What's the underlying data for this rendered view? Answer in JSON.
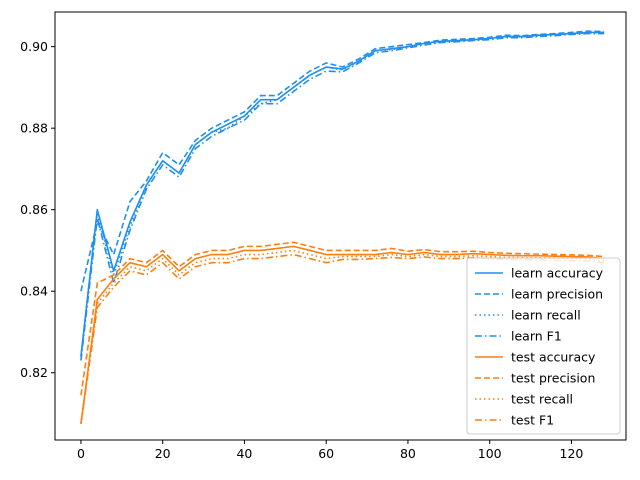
{
  "chart_data": {
    "type": "line",
    "title": "",
    "xlabel": "",
    "ylabel": "",
    "xlim": [
      -6.35,
      133.35
    ],
    "ylim": [
      0.8035,
      0.9085
    ],
    "xticks": [
      0,
      20,
      40,
      60,
      80,
      100,
      120
    ],
    "xtick_labels": [
      "0",
      "20",
      "40",
      "60",
      "80",
      "100",
      "120"
    ],
    "yticks": [
      0.82,
      0.84,
      0.86,
      0.88,
      0.9
    ],
    "ytick_labels": [
      "0.82",
      "0.84",
      "0.86",
      "0.88",
      "0.90"
    ],
    "grid": false,
    "legend_position": "lower-right",
    "colors": {
      "learn": "#1f8ff0",
      "test": "#ff7f0e"
    },
    "x_start": 0,
    "x_step": 4,
    "series": [
      {
        "name": "learn accuracy",
        "group": "learn",
        "style": "solid",
        "values": [
          0.824,
          0.86,
          0.845,
          0.857,
          0.866,
          0.872,
          0.869,
          0.876,
          0.879,
          0.881,
          0.883,
          0.887,
          0.887,
          0.89,
          0.893,
          0.895,
          0.8945,
          0.8965,
          0.899,
          0.8995,
          0.9,
          0.9008,
          0.9013,
          0.9015,
          0.9017,
          0.902,
          0.9025,
          0.9025,
          0.9028,
          0.903,
          0.9032,
          0.9035,
          0.9035
        ]
      },
      {
        "name": "learn precision",
        "group": "learn",
        "style": "dashed",
        "values": [
          0.84,
          0.857,
          0.849,
          0.862,
          0.867,
          0.874,
          0.871,
          0.877,
          0.88,
          0.882,
          0.884,
          0.888,
          0.888,
          0.891,
          0.894,
          0.896,
          0.895,
          0.897,
          0.8995,
          0.9,
          0.9005,
          0.901,
          0.9016,
          0.9018,
          0.902,
          0.9023,
          0.9028,
          0.9027,
          0.903,
          0.9032,
          0.9035,
          0.9038,
          0.9037
        ]
      },
      {
        "name": "learn recall",
        "group": "learn",
        "style": "dotted",
        "values": [
          0.824,
          0.859,
          0.844,
          0.856,
          0.866,
          0.872,
          0.869,
          0.876,
          0.879,
          0.88,
          0.883,
          0.886,
          0.887,
          0.89,
          0.893,
          0.895,
          0.8943,
          0.8963,
          0.899,
          0.8993,
          0.9,
          0.9006,
          0.9012,
          0.9014,
          0.9016,
          0.9019,
          0.9024,
          0.9024,
          0.9027,
          0.9029,
          0.9031,
          0.9034,
          0.9034
        ]
      },
      {
        "name": "learn F1",
        "group": "learn",
        "style": "dashdot",
        "values": [
          0.823,
          0.858,
          0.842,
          0.855,
          0.865,
          0.871,
          0.868,
          0.875,
          0.878,
          0.88,
          0.882,
          0.886,
          0.886,
          0.889,
          0.892,
          0.894,
          0.8938,
          0.896,
          0.8985,
          0.899,
          0.8997,
          0.9004,
          0.901,
          0.9012,
          0.9015,
          0.9017,
          0.9022,
          0.9022,
          0.9025,
          0.9027,
          0.903,
          0.9032,
          0.9032
        ]
      },
      {
        "name": "test accuracy",
        "group": "test",
        "style": "solid",
        "values": [
          0.8075,
          0.838,
          0.843,
          0.847,
          0.846,
          0.849,
          0.845,
          0.848,
          0.849,
          0.849,
          0.85,
          0.85,
          0.8505,
          0.851,
          0.85,
          0.849,
          0.849,
          0.849,
          0.849,
          0.8495,
          0.849,
          0.8495,
          0.849,
          0.849,
          0.8492,
          0.849,
          0.8488,
          0.8487,
          0.8487,
          0.8486,
          0.8485,
          0.8484,
          0.848
        ]
      },
      {
        "name": "test precision",
        "group": "test",
        "style": "dashed",
        "values": [
          0.8145,
          0.842,
          0.844,
          0.848,
          0.847,
          0.85,
          0.846,
          0.849,
          0.85,
          0.85,
          0.851,
          0.851,
          0.8515,
          0.852,
          0.851,
          0.85,
          0.85,
          0.85,
          0.85,
          0.8505,
          0.8498,
          0.8502,
          0.8497,
          0.8497,
          0.8498,
          0.8495,
          0.8493,
          0.8492,
          0.8491,
          0.849,
          0.8489,
          0.8488,
          0.8485
        ]
      },
      {
        "name": "test recall",
        "group": "test",
        "style": "dotted",
        "values": [
          0.8075,
          0.837,
          0.842,
          0.846,
          0.845,
          0.848,
          0.844,
          0.847,
          0.848,
          0.848,
          0.849,
          0.849,
          0.8495,
          0.85,
          0.849,
          0.848,
          0.8485,
          0.8485,
          0.8485,
          0.849,
          0.8485,
          0.849,
          0.8485,
          0.8485,
          0.8487,
          0.8485,
          0.8483,
          0.8482,
          0.8482,
          0.8481,
          0.848,
          0.8479,
          0.8475
        ]
      },
      {
        "name": "test F1",
        "group": "test",
        "style": "dashdot",
        "values": [
          0.8075,
          0.836,
          0.841,
          0.845,
          0.844,
          0.847,
          0.843,
          0.846,
          0.847,
          0.847,
          0.848,
          0.848,
          0.8485,
          0.849,
          0.848,
          0.847,
          0.8478,
          0.8478,
          0.848,
          0.8483,
          0.848,
          0.8484,
          0.848,
          0.848,
          0.8482,
          0.848,
          0.8478,
          0.8477,
          0.8477,
          0.8476,
          0.8475,
          0.8474,
          0.847
        ]
      }
    ]
  }
}
